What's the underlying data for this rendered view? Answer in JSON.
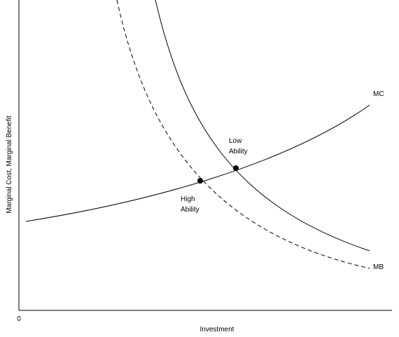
{
  "axes": {
    "y_label": "Marginal Cost, Marginal Benefit",
    "x_label": "Investment",
    "origin": "0"
  },
  "curves": {
    "mc": "MC",
    "mb": "MB"
  },
  "points": {
    "low": [
      "Low",
      "Ability"
    ],
    "high": [
      "High",
      "Ability"
    ]
  }
}
